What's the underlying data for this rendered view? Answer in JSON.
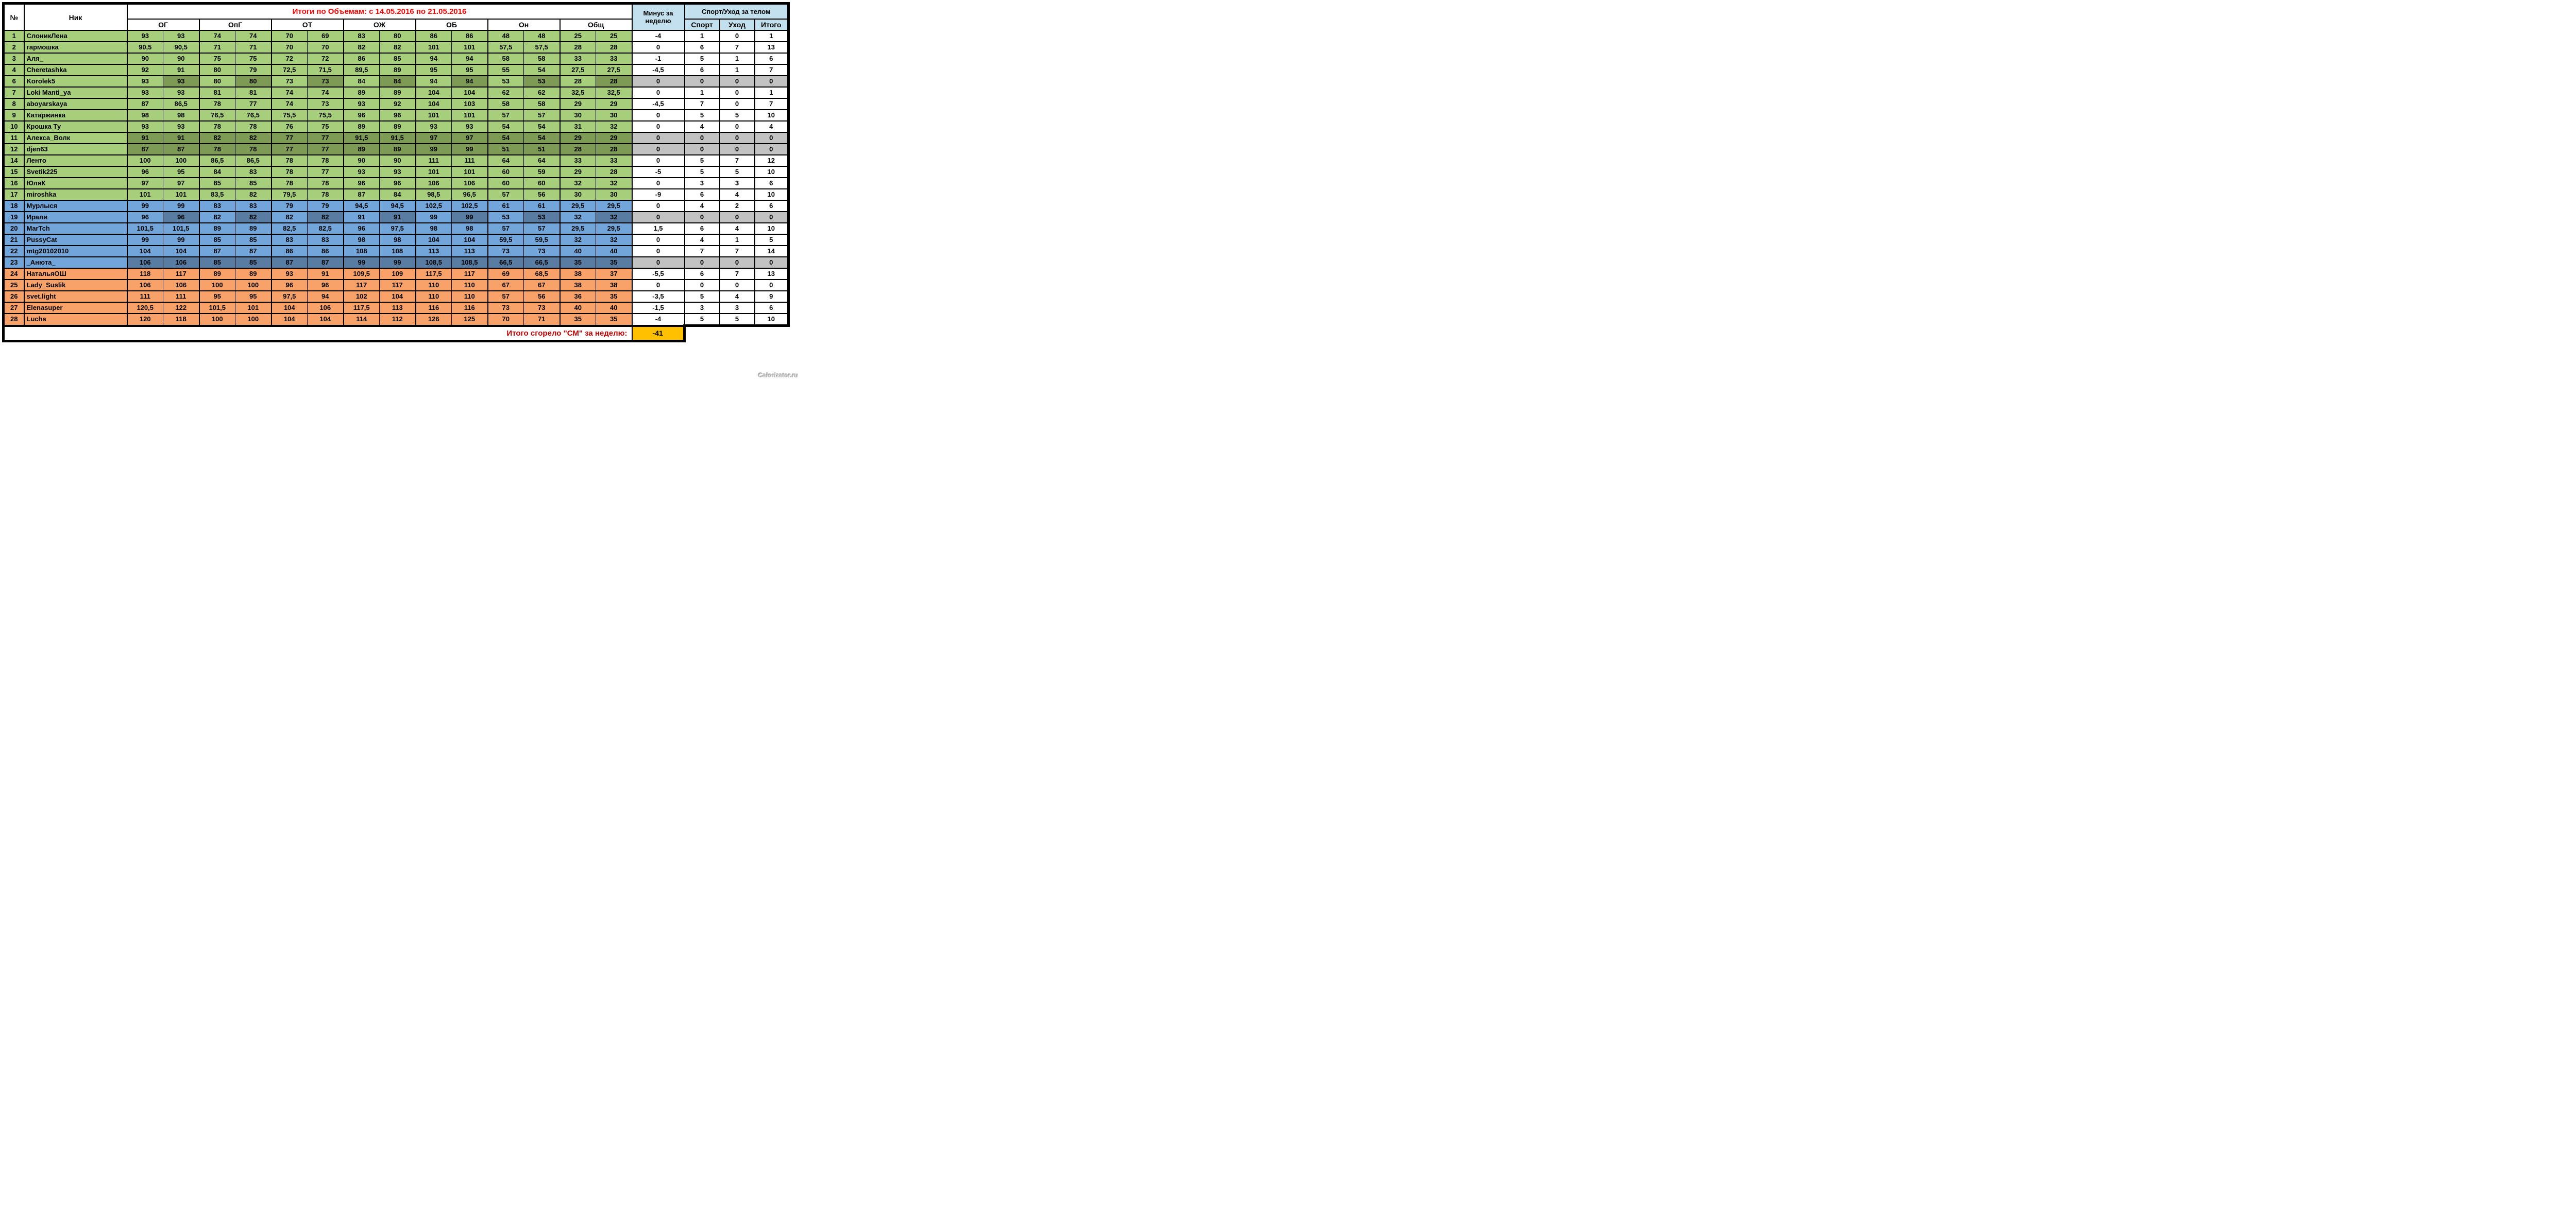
{
  "title": "Итоги по Объемам: с  14.05.2016 по 21.05.2016",
  "columns": {
    "num": "№",
    "nick": "Ник",
    "groups": [
      "ОГ",
      "ОпГ",
      "ОТ",
      "ОЖ",
      "ОБ",
      "Он",
      "Общ"
    ],
    "minus": "Минус за неделю",
    "sport_group": "Спорт/Уход за телом",
    "sport": "Спорт",
    "care": "Уход",
    "total": "Итого"
  },
  "footer": {
    "label": "Итого сгорело \"СМ\" за неделю:",
    "value": "-41"
  },
  "watermark": "Calorizator.ru",
  "colors": {
    "green": "#A7CE7B",
    "greenDark": "#7E9B55",
    "blue": "#72A5DA",
    "blueDark": "#587CA2",
    "orange": "#F8A269",
    "gray": "#C2C2C2",
    "headerBlue": "#C2E0EE",
    "gold": "#FFC000",
    "titleRed": "#FF0000",
    "footerRed": "#C00000"
  },
  "rows": [
    {
      "num": "1",
      "nick": "СлоникЛена",
      "band": "green",
      "dark": "none",
      "zero": false,
      "vals": [
        "93",
        "93",
        "74",
        "74",
        "70",
        "69",
        "83",
        "80",
        "86",
        "86",
        "48",
        "48",
        "25",
        "25"
      ],
      "minus": "-4",
      "sport": "1",
      "care": "0",
      "total": "1"
    },
    {
      "num": "2",
      "nick": "гармошка",
      "band": "green",
      "dark": "none",
      "zero": false,
      "vals": [
        "90,5",
        "90,5",
        "71",
        "71",
        "70",
        "70",
        "82",
        "82",
        "101",
        "101",
        "57,5",
        "57,5",
        "28",
        "28"
      ],
      "minus": "0",
      "sport": "6",
      "care": "7",
      "total": "13"
    },
    {
      "num": "3",
      "nick": "Аля_",
      "band": "green",
      "dark": "none",
      "zero": false,
      "vals": [
        "90",
        "90",
        "75",
        "75",
        "72",
        "72",
        "86",
        "85",
        "94",
        "94",
        "58",
        "58",
        "33",
        "33"
      ],
      "minus": "-1",
      "sport": "5",
      "care": "1",
      "total": "6"
    },
    {
      "num": "4",
      "nick": "Cheretashka",
      "band": "green",
      "dark": "none",
      "zero": false,
      "vals": [
        "92",
        "91",
        "80",
        "79",
        "72,5",
        "71,5",
        "89,5",
        "89",
        "95",
        "95",
        "55",
        "54",
        "27,5",
        "27,5"
      ],
      "minus": "-4,5",
      "sport": "6",
      "care": "1",
      "total": "7"
    },
    {
      "num": "6",
      "nick": "Korolek5",
      "band": "green",
      "dark": "pairs",
      "zero": true,
      "vals": [
        "93",
        "93",
        "80",
        "80",
        "73",
        "73",
        "84",
        "84",
        "94",
        "94",
        "53",
        "53",
        "28",
        "28"
      ],
      "minus": "0",
      "sport": "0",
      "care": "0",
      "total": "0"
    },
    {
      "num": "7",
      "nick": "Loki Manti_ya",
      "band": "green",
      "dark": "none",
      "zero": false,
      "vals": [
        "93",
        "93",
        "81",
        "81",
        "74",
        "74",
        "89",
        "89",
        "104",
        "104",
        "62",
        "62",
        "32,5",
        "32,5"
      ],
      "minus": "0",
      "sport": "1",
      "care": "0",
      "total": "1"
    },
    {
      "num": "8",
      "nick": "aboyarskaya",
      "band": "green",
      "dark": "none",
      "zero": false,
      "vals": [
        "87",
        "86,5",
        "78",
        "77",
        "74",
        "73",
        "93",
        "92",
        "104",
        "103",
        "58",
        "58",
        "29",
        "29"
      ],
      "minus": "-4,5",
      "sport": "7",
      "care": "0",
      "total": "7"
    },
    {
      "num": "9",
      "nick": "Катаржинка",
      "band": "green",
      "dark": "none",
      "zero": false,
      "vals": [
        "98",
        "98",
        "76,5",
        "76,5",
        "75,5",
        "75,5",
        "96",
        "96",
        "101",
        "101",
        "57",
        "57",
        "30",
        "30"
      ],
      "minus": "0",
      "sport": "5",
      "care": "5",
      "total": "10"
    },
    {
      "num": "10",
      "nick": "Крошка Ту",
      "band": "green",
      "dark": "none",
      "zero": false,
      "vals": [
        "93",
        "93",
        "78",
        "78",
        "76",
        "75",
        "89",
        "89",
        "93",
        "93",
        "54",
        "54",
        "31",
        "32"
      ],
      "minus": "0",
      "sport": "4",
      "care": "0",
      "total": "4"
    },
    {
      "num": "11",
      "nick": "Алекса_Волк",
      "band": "green",
      "dark": "all",
      "zero": true,
      "vals": [
        "91",
        "91",
        "82",
        "82",
        "77",
        "77",
        "91,5",
        "91,5",
        "97",
        "97",
        "54",
        "54",
        "29",
        "29"
      ],
      "minus": "0",
      "sport": "0",
      "care": "0",
      "total": "0"
    },
    {
      "num": "12",
      "nick": "djen63",
      "band": "green",
      "dark": "all",
      "zero": true,
      "vals": [
        "87",
        "87",
        "78",
        "78",
        "77",
        "77",
        "89",
        "89",
        "99",
        "99",
        "51",
        "51",
        "28",
        "28"
      ],
      "minus": "0",
      "sport": "0",
      "care": "0",
      "total": "0"
    },
    {
      "num": "14",
      "nick": "Ленто",
      "band": "green",
      "dark": "none",
      "zero": false,
      "vals": [
        "100",
        "100",
        "86,5",
        "86,5",
        "78",
        "78",
        "90",
        "90",
        "111",
        "111",
        "64",
        "64",
        "33",
        "33"
      ],
      "minus": "0",
      "sport": "5",
      "care": "7",
      "total": "12"
    },
    {
      "num": "15",
      "nick": "Svetik225",
      "band": "green",
      "dark": "none",
      "zero": false,
      "vals": [
        "96",
        "95",
        "84",
        "83",
        "78",
        "77",
        "93",
        "93",
        "101",
        "101",
        "60",
        "59",
        "29",
        "28"
      ],
      "minus": "-5",
      "sport": "5",
      "care": "5",
      "total": "10"
    },
    {
      "num": "16",
      "nick": "ЮляК",
      "band": "green",
      "dark": "none",
      "zero": false,
      "vals": [
        "97",
        "97",
        "85",
        "85",
        "78",
        "78",
        "96",
        "96",
        "106",
        "106",
        "60",
        "60",
        "32",
        "32"
      ],
      "minus": "0",
      "sport": "3",
      "care": "3",
      "total": "6"
    },
    {
      "num": "17",
      "nick": "miroshka",
      "band": "green",
      "dark": "none",
      "zero": false,
      "vals": [
        "101",
        "101",
        "83,5",
        "82",
        "79,5",
        "78",
        "87",
        "84",
        "98,5",
        "96,5",
        "57",
        "56",
        "30",
        "30"
      ],
      "minus": "-9",
      "sport": "6",
      "care": "4",
      "total": "10"
    },
    {
      "num": "18",
      "nick": "Мурлыся",
      "band": "blue",
      "dark": "none",
      "zero": false,
      "vals": [
        "99",
        "99",
        "83",
        "83",
        "79",
        "79",
        "94,5",
        "94,5",
        "102,5",
        "102,5",
        "61",
        "61",
        "29,5",
        "29,5"
      ],
      "minus": "0",
      "sport": "4",
      "care": "2",
      "total": "6"
    },
    {
      "num": "19",
      "nick": "Ирали",
      "band": "blue",
      "dark": "pairs",
      "zero": true,
      "vals": [
        "96",
        "96",
        "82",
        "82",
        "82",
        "82",
        "91",
        "91",
        "99",
        "99",
        "53",
        "53",
        "32",
        "32"
      ],
      "minus": "0",
      "sport": "0",
      "care": "0",
      "total": "0"
    },
    {
      "num": "20",
      "nick": "MarTch",
      "band": "blue",
      "dark": "none",
      "zero": false,
      "vals": [
        "101,5",
        "101,5",
        "89",
        "89",
        "82,5",
        "82,5",
        "96",
        "97,5",
        "98",
        "98",
        "57",
        "57",
        "29,5",
        "29,5"
      ],
      "minus": "1,5",
      "sport": "6",
      "care": "4",
      "total": "10"
    },
    {
      "num": "21",
      "nick": "PussyCat",
      "band": "blue",
      "dark": "none",
      "zero": false,
      "vals": [
        "99",
        "99",
        "85",
        "85",
        "83",
        "83",
        "98",
        "98",
        "104",
        "104",
        "59,5",
        "59,5",
        "32",
        "32"
      ],
      "minus": "0",
      "sport": "4",
      "care": "1",
      "total": "5"
    },
    {
      "num": "22",
      "nick": "mtg20102010",
      "band": "blue",
      "dark": "none",
      "zero": false,
      "vals": [
        "104",
        "104",
        "87",
        "87",
        "86",
        "86",
        "108",
        "108",
        "113",
        "113",
        "73",
        "73",
        "40",
        "40"
      ],
      "minus": "0",
      "sport": "7",
      "care": "7",
      "total": "14"
    },
    {
      "num": "23",
      "nick": "_Анюта_",
      "band": "blue",
      "dark": "all",
      "zero": true,
      "vals": [
        "106",
        "106",
        "85",
        "85",
        "87",
        "87",
        "99",
        "99",
        "108,5",
        "108,5",
        "66,5",
        "66,5",
        "35",
        "35"
      ],
      "minus": "0",
      "sport": "0",
      "care": "0",
      "total": "0"
    },
    {
      "num": "24",
      "nick": "НатальяОШ",
      "band": "orange",
      "dark": "none",
      "zero": false,
      "vals": [
        "118",
        "117",
        "89",
        "89",
        "93",
        "91",
        "109,5",
        "109",
        "117,5",
        "117",
        "69",
        "68,5",
        "38",
        "37"
      ],
      "minus": "-5,5",
      "sport": "6",
      "care": "7",
      "total": "13"
    },
    {
      "num": "25",
      "nick": "Lady_Suslik",
      "band": "orange",
      "dark": "none",
      "zero": false,
      "vals": [
        "106",
        "106",
        "100",
        "100",
        "96",
        "96",
        "117",
        "117",
        "110",
        "110",
        "67",
        "67",
        "38",
        "38"
      ],
      "minus": "0",
      "sport": "0",
      "care": "0",
      "total": "0"
    },
    {
      "num": "26",
      "nick": "svet.light",
      "band": "orange",
      "dark": "none",
      "zero": false,
      "vals": [
        "111",
        "111",
        "95",
        "95",
        "97,5",
        "94",
        "102",
        "104",
        "110",
        "110",
        "57",
        "56",
        "36",
        "35"
      ],
      "minus": "-3,5",
      "sport": "5",
      "care": "4",
      "total": "9"
    },
    {
      "num": "27",
      "nick": "Elenasuper",
      "band": "orange",
      "dark": "none",
      "zero": false,
      "vals": [
        "120,5",
        "122",
        "101,5",
        "101",
        "104",
        "106",
        "117,5",
        "113",
        "116",
        "116",
        "73",
        "73",
        "40",
        "40"
      ],
      "minus": "-1,5",
      "sport": "3",
      "care": "3",
      "total": "6"
    },
    {
      "num": "28",
      "nick": "Luchs",
      "band": "orange",
      "dark": "none",
      "zero": false,
      "vals": [
        "120",
        "118",
        "100",
        "100",
        "104",
        "104",
        "114",
        "112",
        "126",
        "125",
        "70",
        "71",
        "35",
        "35"
      ],
      "minus": "-4",
      "sport": "5",
      "care": "5",
      "total": "10"
    }
  ]
}
